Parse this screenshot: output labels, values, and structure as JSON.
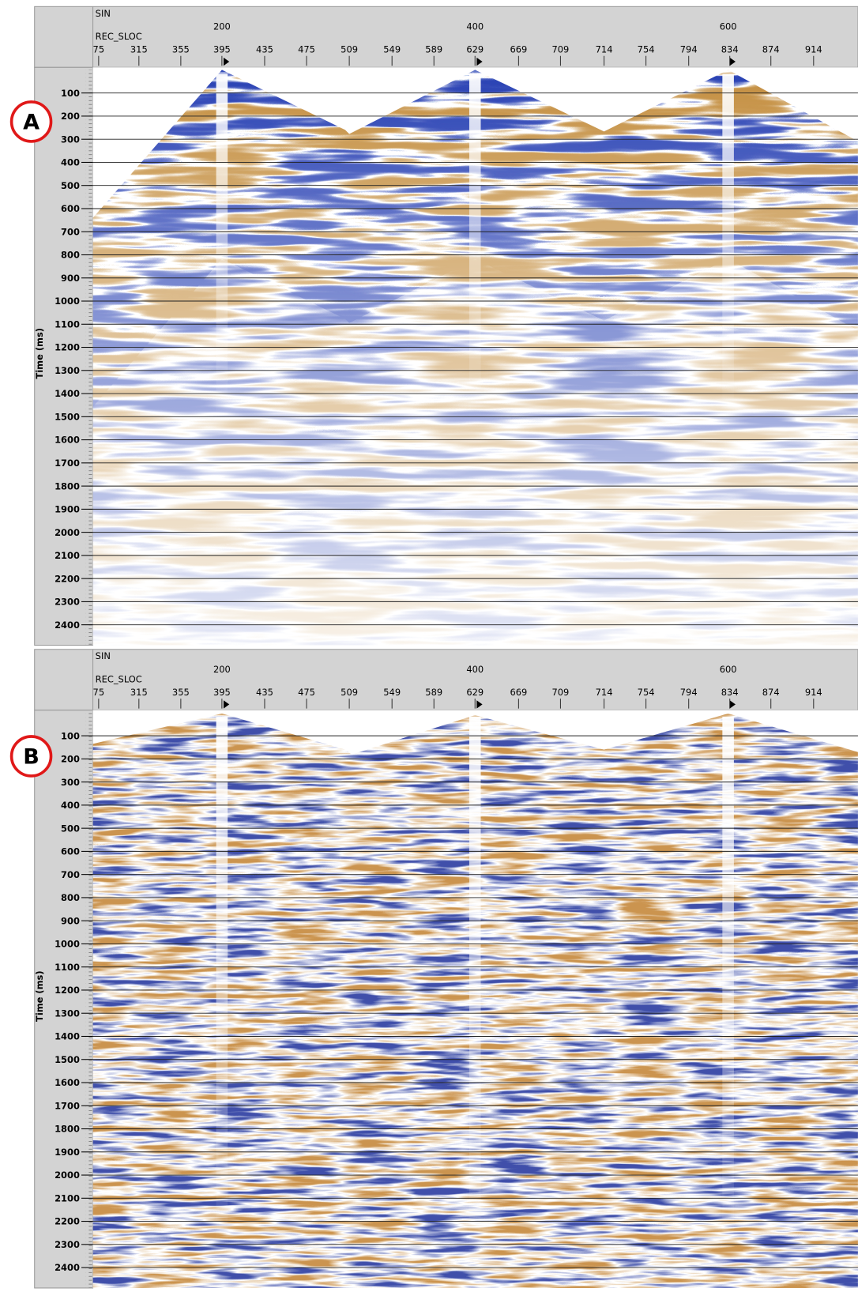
{
  "panels": [
    {
      "label": "A",
      "sin_label": "SIN",
      "rec_label": "REC_SLOC",
      "sin_ticks": [
        200,
        400,
        600
      ],
      "rec_ticks": [
        75,
        315,
        355,
        395,
        435,
        475,
        509,
        549,
        589,
        629,
        669,
        709,
        714,
        754,
        794,
        834,
        874,
        914
      ],
      "time_ticks": [
        100,
        200,
        300,
        400,
        500,
        600,
        700,
        800,
        900,
        1000,
        1100,
        1200,
        1300,
        1400,
        1500,
        1600,
        1700,
        1800,
        1900,
        2000,
        2100,
        2200,
        2300,
        2400
      ],
      "y_axis_label": "Time (ms)"
    },
    {
      "label": "B",
      "sin_label": "SIN",
      "rec_label": "REC_SLOC",
      "sin_ticks": [
        200,
        400,
        600
      ],
      "rec_ticks": [
        75,
        315,
        355,
        395,
        435,
        475,
        509,
        549,
        589,
        629,
        669,
        709,
        714,
        754,
        794,
        834,
        874,
        914
      ],
      "time_ticks": [
        100,
        200,
        300,
        400,
        500,
        600,
        700,
        800,
        900,
        1000,
        1100,
        1200,
        1300,
        1400,
        1500,
        1600,
        1700,
        1800,
        1900,
        2000,
        2100,
        2200,
        2300,
        2400
      ],
      "y_axis_label": "Time (ms)"
    }
  ]
}
